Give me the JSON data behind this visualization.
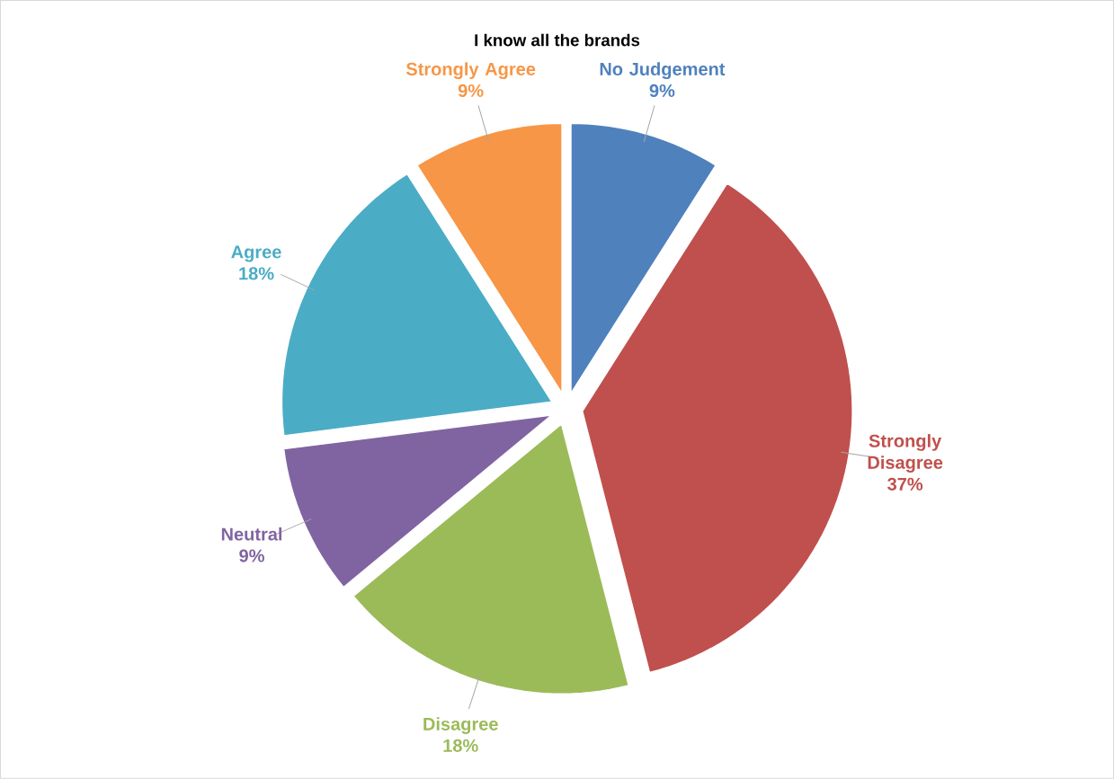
{
  "chart_data": {
    "type": "pie",
    "title": "I know all the brands",
    "categories": [
      "No Judgement",
      "Strongly Disagree",
      "Disagree",
      "Neutral",
      "Agree",
      "Strongly Agree"
    ],
    "values": [
      9,
      37,
      18,
      9,
      18,
      9
    ],
    "value_labels": [
      "9%",
      "37%",
      "18%",
      "9%",
      "18%",
      "9%"
    ],
    "colors": [
      "#4f81bd",
      "#c0504d",
      "#9bbb59",
      "#8064a2",
      "#4bacc6",
      "#f79646"
    ]
  }
}
